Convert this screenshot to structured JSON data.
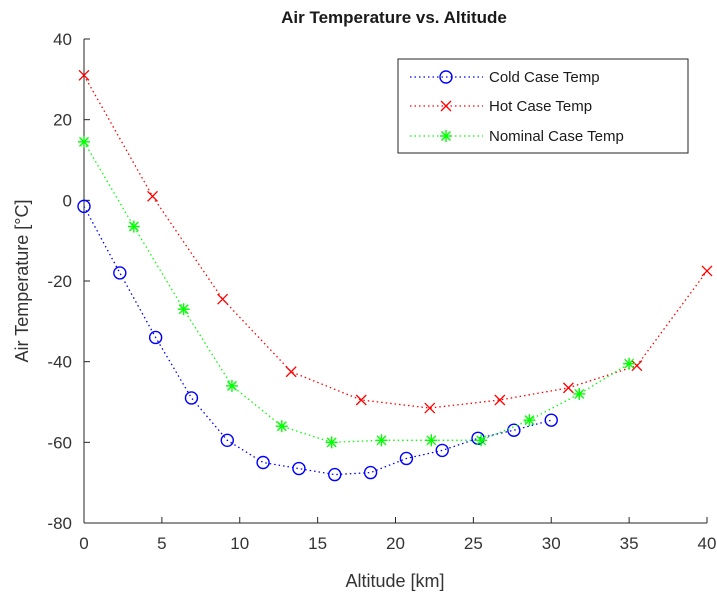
{
  "chart_data": {
    "type": "line",
    "title": "Air Temperature vs. Altitude",
    "xlabel": "Altitude [km]",
    "ylabel": "Air Temperature [°C]",
    "xlim": [
      0,
      40
    ],
    "ylim": [
      -80,
      40
    ],
    "xticks": [
      0,
      5,
      10,
      15,
      20,
      25,
      30,
      35,
      40
    ],
    "yticks": [
      -80,
      -60,
      -40,
      -20,
      0,
      20,
      40
    ],
    "grid": false,
    "legend_position": "top-right",
    "series": [
      {
        "name": "Cold Case Temp",
        "color": "#0000ff",
        "marker": "circle",
        "line_style": "dotted",
        "x": [
          0,
          2.3,
          4.6,
          6.9,
          9.2,
          11.5,
          13.8,
          16.1,
          18.4,
          20.7,
          23.0,
          25.3,
          27.6,
          30.0
        ],
        "y": [
          -1.5,
          -18,
          -34,
          -49,
          -59.5,
          -65,
          -66.5,
          -68,
          -67.5,
          -64,
          -62,
          -59,
          -57,
          -54.5
        ]
      },
      {
        "name": "Hot Case Temp",
        "color": "#ff0000",
        "marker": "x",
        "line_style": "dotted",
        "x": [
          0,
          4.4,
          8.9,
          13.3,
          17.8,
          22.2,
          26.7,
          31.1,
          35.5,
          40.0
        ],
        "y": [
          31,
          1,
          -24.5,
          -42.5,
          -49.5,
          -51.5,
          -49.5,
          -46.5,
          -41,
          -17.5
        ]
      },
      {
        "name": "Nominal Case Temp",
        "color": "#00ff00",
        "marker": "asterisk",
        "line_style": "dotted",
        "x": [
          0,
          3.2,
          6.4,
          9.5,
          12.7,
          15.9,
          19.1,
          22.3,
          25.5,
          28.6,
          31.8,
          35.0
        ],
        "y": [
          14.5,
          -6.5,
          -27,
          -46,
          -56,
          -60,
          -59.5,
          -59.5,
          -59.5,
          -54.5,
          -48,
          -40.5
        ]
      }
    ]
  }
}
